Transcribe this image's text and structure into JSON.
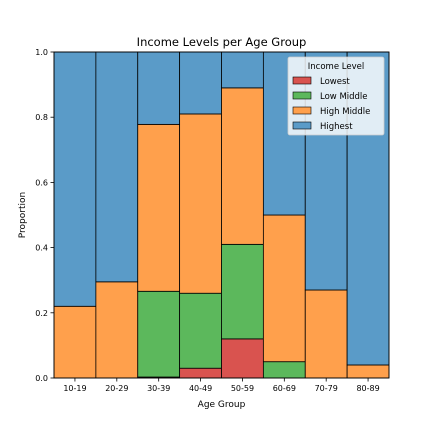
{
  "chart_data": {
    "type": "bar",
    "stacked": true,
    "title": "Income Levels per Age Group",
    "xlabel": "Age Group",
    "ylabel": "Proportion",
    "ylim": [
      0,
      1
    ],
    "yticks": [
      0.0,
      0.2,
      0.4,
      0.6,
      0.8,
      1.0
    ],
    "ytick_labels": [
      "0.0",
      "0.2",
      "0.4",
      "0.6",
      "0.8",
      "1.0"
    ],
    "grid": false,
    "categories": [
      "10-19",
      "20-29",
      "30-39",
      "40-49",
      "50-59",
      "60-69",
      "70-79",
      "80-89"
    ],
    "legend": {
      "title": "Income Level",
      "placement": "top-right"
    },
    "series": [
      {
        "name": "Lowest",
        "color": "#d9534f",
        "values": [
          0.0,
          0.0,
          0.003,
          0.03,
          0.12,
          0.0,
          0.0,
          0.0
        ]
      },
      {
        "name": "Low Middle",
        "color": "#5cb85c",
        "values": [
          0.0,
          0.0,
          0.263,
          0.23,
          0.29,
          0.05,
          0.0,
          0.0
        ]
      },
      {
        "name": "High Middle",
        "color": "#ffa04c",
        "values": [
          0.22,
          0.295,
          0.512,
          0.55,
          0.48,
          0.45,
          0.27,
          0.04
        ]
      },
      {
        "name": "Highest",
        "color": "#5a9bc8",
        "values": [
          0.78,
          0.705,
          0.222,
          0.19,
          0.11,
          0.5,
          0.73,
          0.96
        ]
      }
    ]
  }
}
